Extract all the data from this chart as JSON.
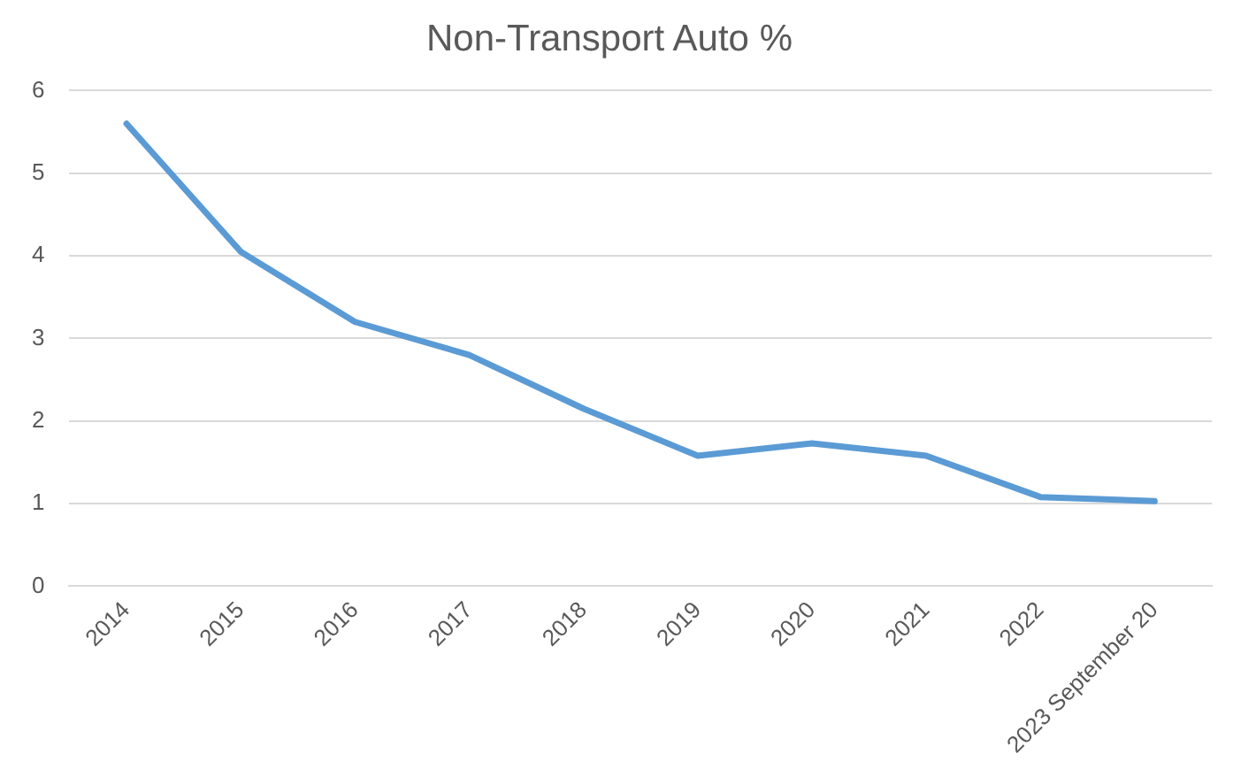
{
  "chart_data": {
    "type": "line",
    "title": "Non-Transport Auto %",
    "categories": [
      "2014",
      "2015",
      "2016",
      "2017",
      "2018",
      "2019",
      "2020",
      "2021",
      "2022",
      "2023 September 20"
    ],
    "series": [
      {
        "color": "#5b9bd5",
        "values": [
          5.6,
          4.05,
          3.2,
          2.8,
          2.15,
          1.58,
          1.73,
          1.58,
          1.08,
          1.03
        ]
      }
    ],
    "ylim": [
      0,
      6
    ],
    "yticks": [
      0,
      1,
      2,
      3,
      4,
      5,
      6
    ],
    "grid": "y",
    "legend": false,
    "marker": "none",
    "line_style": "solid"
  }
}
